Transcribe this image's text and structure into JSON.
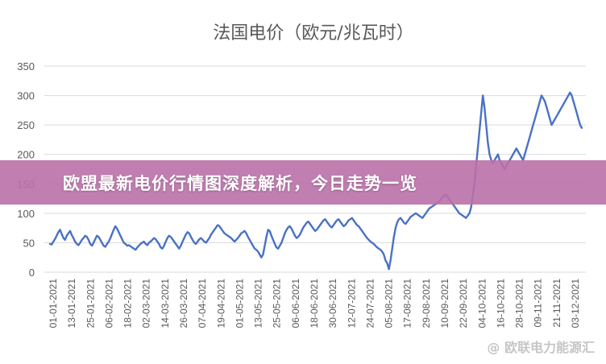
{
  "banner": {
    "headline": "欧盟最新电价行情图深度解析，今日走势一览"
  },
  "watermark": {
    "text": "@ 欧联电力能源汇"
  },
  "chart_data": {
    "type": "line",
    "title": "法国电价（欧元/兆瓦时）",
    "xlabel": "",
    "ylabel": "",
    "ylim": [
      0,
      350
    ],
    "yticks": [
      0,
      50,
      100,
      150,
      200,
      250,
      300,
      350
    ],
    "grid": true,
    "legend": "none",
    "color": "#4a72c4",
    "xtick_labels": [
      "01-01-2021",
      "13-01-2021",
      "25-01-2021",
      "06-02-2021",
      "18-02-2021",
      "02-03-2021",
      "14-03-2021",
      "26-03-2021",
      "07-04-2021",
      "19-04-2021",
      "01-05-2021",
      "13-05-2021",
      "25-05-2021",
      "06-06-2021",
      "18-06-2021",
      "30-06-2021",
      "12-07-2021",
      "24-07-2021",
      "05-08-2021",
      "17-08-2021",
      "29-08-2021",
      "10-09-2021",
      "22-09-2021",
      "04-10-2021",
      "16-10-2021",
      "28-10-2021",
      "09-11-2021",
      "21-11-2021",
      "03-12-2021"
    ],
    "series": [
      {
        "values": [
          48,
          47,
          52,
          56,
          62,
          68,
          72,
          65,
          58,
          55,
          62,
          66,
          70,
          63,
          58,
          52,
          48,
          46,
          50,
          55,
          58,
          62,
          60,
          55,
          48,
          45,
          50,
          56,
          62,
          60,
          55,
          50,
          45,
          43,
          48,
          52,
          58,
          65,
          72,
          78,
          74,
          68,
          62,
          56,
          50,
          48,
          45,
          46,
          44,
          42,
          40,
          38,
          42,
          45,
          48,
          50,
          52,
          48,
          46,
          50,
          52,
          55,
          58,
          56,
          52,
          48,
          42,
          40,
          45,
          52,
          58,
          62,
          60,
          56,
          52,
          48,
          44,
          40,
          45,
          52,
          58,
          64,
          68,
          66,
          60,
          55,
          50,
          48,
          52,
          56,
          58,
          55,
          52,
          50,
          54,
          58,
          64,
          68,
          72,
          76,
          80,
          78,
          74,
          70,
          66,
          64,
          62,
          60,
          58,
          55,
          52,
          55,
          58,
          62,
          66,
          68,
          70,
          66,
          60,
          55,
          50,
          45,
          40,
          38,
          35,
          30,
          25,
          30,
          45,
          60,
          72,
          70,
          62,
          55,
          48,
          42,
          40,
          45,
          50,
          58,
          66,
          72,
          76,
          78,
          74,
          68,
          62,
          58,
          60,
          64,
          70,
          76,
          80,
          84,
          86,
          82,
          78,
          74,
          70,
          72,
          76,
          80,
          84,
          88,
          90,
          86,
          82,
          78,
          76,
          80,
          84,
          88,
          90,
          86,
          82,
          78,
          80,
          84,
          88,
          90,
          92,
          88,
          84,
          80,
          78,
          74,
          70,
          66,
          62,
          58,
          55,
          52,
          50,
          48,
          45,
          42,
          40,
          38,
          35,
          30,
          20,
          15,
          5,
          20,
          40,
          60,
          75,
          85,
          90,
          92,
          88,
          84,
          82,
          86,
          90,
          94,
          96,
          98,
          100,
          98,
          96,
          94,
          92,
          96,
          100,
          104,
          108,
          110,
          112,
          114,
          116,
          118,
          120,
          124,
          128,
          130,
          132,
          128,
          124,
          120,
          116,
          112,
          108,
          104,
          100,
          98,
          96,
          94,
          92,
          96,
          100,
          110,
          130,
          150,
          180,
          210,
          240,
          270,
          300,
          280,
          250,
          220,
          200,
          190,
          185,
          190,
          195,
          200,
          190,
          185,
          180,
          175,
          180,
          185,
          190,
          195,
          200,
          205,
          210,
          205,
          200,
          195,
          190,
          200,
          210,
          220,
          230,
          240,
          250,
          260,
          270,
          280,
          290,
          300,
          295,
          290,
          280,
          270,
          260,
          250,
          255,
          260,
          265,
          270,
          275,
          280,
          285,
          290,
          295,
          300,
          305,
          300,
          290,
          280,
          270,
          260,
          250,
          245
        ]
      }
    ]
  }
}
